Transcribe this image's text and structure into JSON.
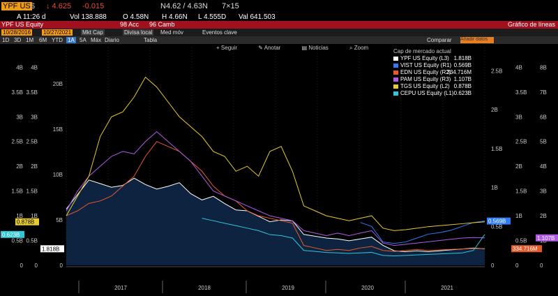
{
  "quote": {
    "ticker": "YPF US",
    "currency": "$",
    "price": "↓ 4.625",
    "change": "-0.015",
    "bid": "N4.62 / 4.63N",
    "size": "7×15",
    "time": "A 11:26 d",
    "volume": "Vol 138.888",
    "open": "O 4.58N",
    "high": "H 4.66N",
    "low": "L 4.555D",
    "value": "Val 641.503"
  },
  "title_bar": {
    "security": "YPF US Equity",
    "settings": "98 Acc",
    "camb": "96 Camb",
    "chart_name": "Gráfico de líneas"
  },
  "range_bar": {
    "start": "10/28/2016",
    "end": "10/27/2021",
    "field": "Mkt Cap",
    "currency": "Divisa local",
    "average": "Med móv",
    "events": "Eventos clave"
  },
  "periods": [
    "1D",
    "3D",
    "1M",
    "6M",
    "YTD",
    "1A",
    "5A",
    "Máx",
    "Diario",
    "Tabla"
  ],
  "active_period": "1A",
  "toolbar": {
    "follow": "Seguir",
    "annotate": "Anotar",
    "news": "Noticias",
    "zoom": "Zoom",
    "compare": "Comparar",
    "search": "Añadir datos"
  },
  "colors": {
    "YPF": "#ffffff",
    "VIST": "#2e7cf6",
    "EDN": "#e8592a",
    "PAM": "#b05be8",
    "TGS": "#e6cc2e",
    "CEPU": "#2ec8d8"
  },
  "chart_data": {
    "type": "line",
    "legend_title": "Cap de mercado actual",
    "x_labels": [
      "2017",
      "2018",
      "2019",
      "2020",
      "2021"
    ],
    "axes": {
      "L1": {
        "ticks": [
          "0",
          "0.5B",
          "1B",
          "1.5B",
          "2B",
          "2.5B",
          "3B",
          "3.5B",
          "4B"
        ],
        "range": [
          0,
          4400000000.0
        ]
      },
      "L2": {
        "ticks": [
          "0",
          "0.5B",
          "1B",
          "1.5B",
          "2B",
          "2.5B",
          "3B",
          "3.5B",
          "4B"
        ],
        "range": [
          0,
          4400000000.0
        ]
      },
      "L3": {
        "ticks": [
          "0",
          "5B",
          "10B",
          "15B",
          "20B"
        ],
        "range": [
          0,
          24000000000.0
        ]
      },
      "R1": {
        "ticks": [
          "0",
          "0.5B",
          "1B",
          "1.5B",
          "2B",
          "2.5B"
        ],
        "range": [
          0,
          2800000000.0
        ]
      },
      "R2": {
        "ticks": [
          "0",
          "0.5B",
          "1B",
          "1.5B",
          "2B",
          "2.5B",
          "3B",
          "3.5B",
          "4B"
        ],
        "range": [
          0,
          4400000000.0
        ]
      },
      "R3": {
        "ticks": [
          "0",
          "1B",
          "2B",
          "3B",
          "4B",
          "5B",
          "6B",
          "7B",
          "8B"
        ],
        "range": [
          0,
          8800000000.0
        ]
      }
    },
    "series": [
      {
        "name": "YPF US Equity",
        "axis": "L3",
        "last": "1.818B",
        "key": "YPF",
        "area": true,
        "values": [
          6.2,
          7.8,
          9.4,
          9.0,
          8.6,
          8.8,
          9.6,
          8.9,
          8.4,
          8.7,
          9.1,
          7.9,
          7.2,
          7.6,
          6.8,
          6.1,
          6.0,
          5.4,
          4.8,
          5.0,
          4.9,
          3.4,
          3.2,
          3.0,
          2.9,
          2.7,
          2.9,
          3.1,
          2.2,
          1.6,
          1.5,
          1.6,
          1.5,
          1.6,
          1.7,
          1.8,
          1.9,
          1.82
        ]
      },
      {
        "name": "VIST US Equity",
        "axis": "R1",
        "last": "0.569B",
        "key": "VIST",
        "values": [
          null,
          null,
          null,
          null,
          null,
          null,
          null,
          null,
          null,
          null,
          null,
          null,
          null,
          null,
          null,
          null,
          null,
          null,
          null,
          null,
          null,
          null,
          null,
          null,
          null,
          null,
          0.55,
          0.5,
          0.3,
          0.28,
          0.3,
          0.35,
          0.4,
          0.42,
          0.45,
          0.5,
          0.55,
          0.569
        ]
      },
      {
        "name": "EDN US Equity",
        "axis": "R2",
        "last": "334.716M",
        "key": "EDN",
        "values": [
          1.0,
          1.1,
          1.25,
          1.3,
          1.4,
          1.6,
          1.8,
          2.2,
          2.5,
          2.4,
          2.3,
          2.1,
          1.9,
          1.6,
          1.4,
          1.3,
          1.1,
          1.0,
          0.95,
          0.9,
          0.85,
          0.4,
          0.35,
          0.3,
          0.32,
          0.3,
          0.35,
          0.38,
          0.3,
          0.28,
          0.3,
          0.32,
          0.3,
          0.31,
          0.32,
          0.33,
          0.34,
          0.335
        ]
      },
      {
        "name": "PAM US Equity",
        "axis": "R3",
        "last": "1.107B",
        "key": "PAM",
        "values": [
          2.2,
          3.0,
          3.6,
          4.0,
          4.4,
          4.6,
          4.5,
          5.0,
          5.4,
          5.0,
          4.6,
          4.2,
          3.6,
          3.0,
          2.8,
          2.6,
          2.4,
          2.2,
          2.0,
          1.9,
          1.8,
          1.4,
          1.3,
          1.2,
          1.3,
          1.2,
          1.3,
          1.4,
          0.9,
          0.8,
          0.85,
          0.9,
          0.95,
          1.0,
          1.05,
          1.1,
          1.12,
          1.107
        ]
      },
      {
        "name": "TGS US Equity",
        "axis": "L2",
        "last": "0.878B",
        "key": "TGS",
        "values": [
          1.0,
          1.4,
          1.8,
          2.6,
          3.0,
          3.1,
          3.4,
          3.8,
          3.6,
          3.3,
          3.0,
          2.8,
          2.6,
          2.3,
          2.2,
          1.9,
          2.0,
          1.8,
          2.3,
          2.4,
          1.9,
          1.2,
          1.1,
          1.0,
          0.95,
          0.9,
          0.95,
          1.0,
          0.75,
          0.7,
          0.72,
          0.75,
          0.78,
          0.8,
          0.82,
          0.84,
          0.86,
          0.878
        ]
      },
      {
        "name": "CEPU US Equity",
        "axis": "L1",
        "last": "0.623B",
        "key": "CEPU",
        "values": [
          null,
          null,
          null,
          null,
          null,
          null,
          null,
          null,
          null,
          null,
          null,
          null,
          0.95,
          0.9,
          0.85,
          0.8,
          0.75,
          0.7,
          0.62,
          0.6,
          0.55,
          0.3,
          0.28,
          0.26,
          0.25,
          0.24,
          0.25,
          0.26,
          0.2,
          0.19,
          0.2,
          0.21,
          0.22,
          0.23,
          0.24,
          0.25,
          0.3,
          0.623
        ]
      }
    ]
  }
}
